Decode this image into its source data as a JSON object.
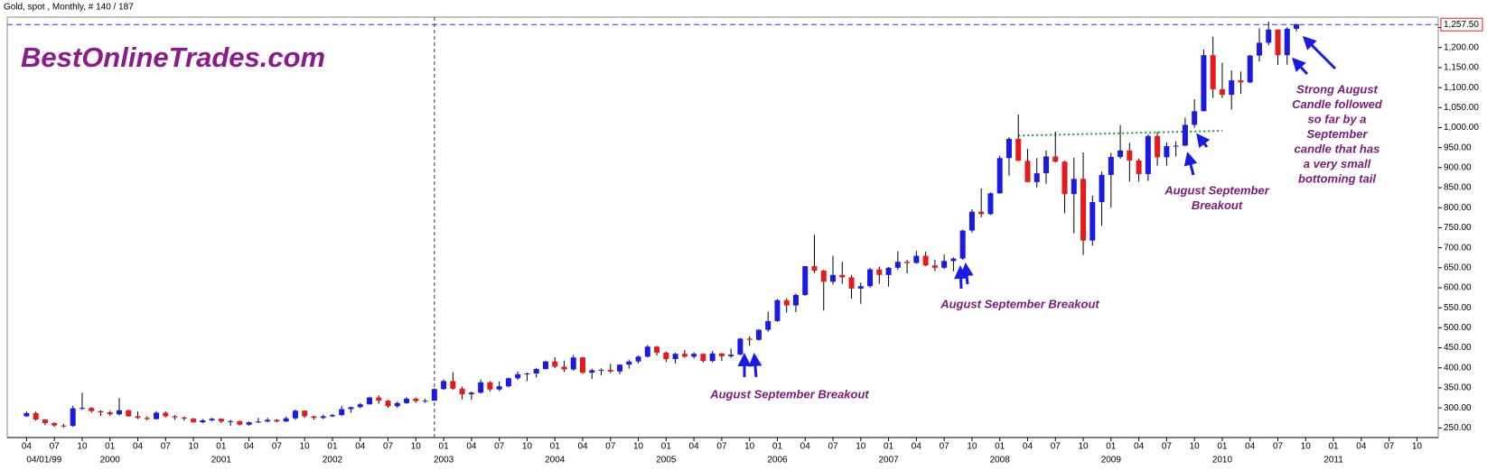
{
  "chart_data": {
    "type": "candlestick",
    "title": "Gold, spot , Monthly, # 140 / 187",
    "watermark": "BestOnlineTrades.com",
    "up_color": "#1a1ae6",
    "down_color": "#e61a1a",
    "x": [
      "1999-04",
      "1999-05",
      "1999-06",
      "1999-07",
      "1999-08",
      "1999-09",
      "1999-10",
      "1999-11",
      "1999-12",
      "2000-01",
      "2000-02",
      "2000-03",
      "2000-04",
      "2000-05",
      "2000-06",
      "2000-07",
      "2000-08",
      "2000-09",
      "2000-10",
      "2000-11",
      "2000-12",
      "2001-01",
      "2001-02",
      "2001-03",
      "2001-04",
      "2001-05",
      "2001-06",
      "2001-07",
      "2001-08",
      "2001-09",
      "2001-10",
      "2001-11",
      "2001-12",
      "2002-01",
      "2002-02",
      "2002-03",
      "2002-04",
      "2002-05",
      "2002-06",
      "2002-07",
      "2002-08",
      "2002-09",
      "2002-10",
      "2002-11",
      "2002-12",
      "2003-01",
      "2003-02",
      "2003-03",
      "2003-04",
      "2003-05",
      "2003-06",
      "2003-07",
      "2003-08",
      "2003-09",
      "2003-10",
      "2003-11",
      "2003-12",
      "2004-01",
      "2004-02",
      "2004-03",
      "2004-04",
      "2004-05",
      "2004-06",
      "2004-07",
      "2004-08",
      "2004-09",
      "2004-10",
      "2004-11",
      "2004-12",
      "2005-01",
      "2005-02",
      "2005-03",
      "2005-04",
      "2005-05",
      "2005-06",
      "2005-07",
      "2005-08",
      "2005-09",
      "2005-10",
      "2005-11",
      "2005-12",
      "2006-01",
      "2006-02",
      "2006-03",
      "2006-04",
      "2006-05",
      "2006-06",
      "2006-07",
      "2006-08",
      "2006-09",
      "2006-10",
      "2006-11",
      "2006-12",
      "2007-01",
      "2007-02",
      "2007-03",
      "2007-04",
      "2007-05",
      "2007-06",
      "2007-07",
      "2007-08",
      "2007-09",
      "2007-10",
      "2007-11",
      "2007-12",
      "2008-01",
      "2008-02",
      "2008-03",
      "2008-04",
      "2008-05",
      "2008-06",
      "2008-07",
      "2008-08",
      "2008-09",
      "2008-10",
      "2008-11",
      "2008-12",
      "2009-01",
      "2009-02",
      "2009-03",
      "2009-04",
      "2009-05",
      "2009-06",
      "2009-07",
      "2009-08",
      "2009-09",
      "2009-10",
      "2009-11",
      "2009-12",
      "2010-01",
      "2010-02",
      "2010-03",
      "2010-04",
      "2010-05",
      "2010-06",
      "2010-07",
      "2010-08",
      "2010-09"
    ],
    "open": [
      279,
      287,
      271,
      262,
      256,
      255,
      299,
      300,
      292,
      289,
      284,
      294,
      279,
      275,
      272,
      288,
      279,
      276,
      273,
      264,
      269,
      273,
      266,
      267,
      258,
      264,
      266,
      270,
      266,
      274,
      293,
      279,
      275,
      279,
      282,
      297,
      302,
      309,
      326,
      318,
      304,
      312,
      323,
      317,
      318,
      347,
      367,
      348,
      334,
      338,
      364,
      346,
      354,
      374,
      384,
      386,
      397,
      416,
      403,
      396,
      426,
      388,
      394,
      395,
      391,
      408,
      416,
      428,
      453,
      438,
      422,
      435,
      428,
      435,
      417,
      436,
      429,
      433,
      473,
      470,
      495,
      517,
      569,
      556,
      582,
      654,
      643,
      615,
      632,
      626,
      598,
      604,
      646,
      632,
      650,
      665,
      662,
      680,
      656,
      650,
      667,
      673,
      743,
      790,
      784,
      836,
      924,
      972,
      917,
      864,
      886,
      928,
      915,
      834,
      872,
      718,
      814,
      882,
      927,
      943,
      918,
      884,
      979,
      926,
      954,
      955,
      1007,
      1041,
      1181,
      1096,
      1082,
      1118,
      1113,
      1180,
      1212,
      1245,
      1181,
      1247
    ],
    "high": [
      291,
      291,
      272,
      264,
      260,
      305,
      338,
      302,
      294,
      293,
      325,
      296,
      291,
      279,
      292,
      291,
      282,
      278,
      275,
      272,
      275,
      274,
      270,
      268,
      266,
      275,
      275,
      272,
      279,
      296,
      294,
      280,
      283,
      285,
      305,
      303,
      312,
      328,
      331,
      320,
      316,
      327,
      326,
      323,
      349,
      371,
      389,
      353,
      341,
      371,
      367,
      366,
      376,
      391,
      388,
      400,
      418,
      427,
      418,
      432,
      428,
      398,
      399,
      410,
      409,
      420,
      431,
      457,
      455,
      441,
      438,
      445,
      439,
      436,
      442,
      437,
      448,
      475,
      479,
      497,
      540,
      572,
      574,
      586,
      654,
      732,
      645,
      680,
      665,
      632,
      613,
      650,
      653,
      652,
      691,
      670,
      692,
      690,
      670,
      683,
      676,
      745,
      796,
      848,
      838,
      930,
      976,
      1033,
      947,
      924,
      943,
      990,
      917,
      925,
      938,
      830,
      890,
      937,
      1006,
      962,
      923,
      983,
      990,
      963,
      966,
      1025,
      1071,
      1195,
      1227,
      1162,
      1143,
      1140,
      1182,
      1248,
      1265,
      1245,
      1251,
      1260
    ],
    "low": [
      278,
      268,
      257,
      253,
      251,
      253,
      295,
      288,
      280,
      280,
      281,
      278,
      272,
      269,
      271,
      276,
      270,
      268,
      263,
      262,
      267,
      262,
      255,
      256,
      255,
      262,
      264,
      264,
      265,
      270,
      275,
      270,
      272,
      277,
      280,
      288,
      299,
      308,
      310,
      300,
      300,
      310,
      313,
      313,
      318,
      345,
      345,
      321,
      320,
      336,
      341,
      342,
      351,
      370,
      367,
      376,
      396,
      399,
      390,
      393,
      385,
      372,
      381,
      387,
      384,
      398,
      411,
      426,
      431,
      415,
      411,
      425,
      423,
      414,
      414,
      417,
      425,
      432,
      455,
      468,
      490,
      515,
      538,
      539,
      580,
      637,
      543,
      608,
      610,
      573,
      560,
      600,
      610,
      603,
      645,
      636,
      660,
      654,
      642,
      647,
      641,
      670,
      738,
      776,
      782,
      835,
      880,
      917,
      865,
      850,
      860,
      913,
      786,
      736,
      682,
      705,
      755,
      800,
      922,
      865,
      865,
      867,
      905,
      905,
      928,
      954,
      1000,
      1041,
      1074,
      1074,
      1045,
      1084,
      1111,
      1165,
      1206,
      1157,
      1157,
      1240
    ],
    "close": [
      287,
      271,
      262,
      256,
      255,
      299,
      300,
      292,
      289,
      284,
      294,
      279,
      275,
      272,
      288,
      279,
      276,
      273,
      264,
      269,
      273,
      266,
      267,
      258,
      264,
      266,
      270,
      266,
      274,
      293,
      279,
      275,
      279,
      282,
      297,
      302,
      309,
      326,
      318,
      304,
      312,
      323,
      317,
      318,
      347,
      367,
      348,
      334,
      338,
      364,
      346,
      354,
      374,
      384,
      386,
      397,
      416,
      403,
      396,
      426,
      388,
      394,
      395,
      391,
      408,
      416,
      428,
      453,
      438,
      422,
      435,
      428,
      435,
      417,
      436,
      429,
      433,
      473,
      470,
      495,
      517,
      569,
      556,
      582,
      654,
      643,
      615,
      632,
      626,
      598,
      604,
      646,
      632,
      650,
      665,
      662,
      680,
      656,
      650,
      667,
      673,
      743,
      790,
      784,
      836,
      924,
      972,
      917,
      864,
      886,
      928,
      915,
      834,
      872,
      718,
      814,
      882,
      927,
      943,
      918,
      884,
      979,
      926,
      954,
      955,
      1007,
      1041,
      1181,
      1096,
      1082,
      1118,
      1113,
      1180,
      1212,
      1245,
      1181,
      1247,
      1257.5
    ],
    "ylim": [
      226,
      1276
    ],
    "yticks": [
      {
        "value": 250,
        "label": "250.00"
      },
      {
        "value": 300,
        "label": "300.00"
      },
      {
        "value": 350,
        "label": "350.00"
      },
      {
        "value": 400,
        "label": "400.00"
      },
      {
        "value": 450,
        "label": "450.00"
      },
      {
        "value": 500,
        "label": "500.00"
      },
      {
        "value": 550,
        "label": "550.00"
      },
      {
        "value": 600,
        "label": "600.00"
      },
      {
        "value": 650,
        "label": "650.00"
      },
      {
        "value": 700,
        "label": "700.00"
      },
      {
        "value": 750,
        "label": "750.00"
      },
      {
        "value": 800,
        "label": "800.00"
      },
      {
        "value": 850,
        "label": "850.00"
      },
      {
        "value": 900,
        "label": "900.00"
      },
      {
        "value": 950,
        "label": "950.00"
      },
      {
        "value": 1000,
        "label": "1,000.00"
      },
      {
        "value": 1050,
        "label": "1,050.00"
      },
      {
        "value": 1100,
        "label": "1,100.00"
      },
      {
        "value": 1150,
        "label": "1,150.00"
      },
      {
        "value": 1200,
        "label": "1,200.00"
      },
      {
        "value": 1250,
        "label": "1,250.00"
      }
    ],
    "last_price": {
      "value": 1257.5,
      "label": "1,257.50"
    },
    "xticks": [
      {
        "value": "1999-04",
        "label": "04"
      },
      {
        "value": "1999-07",
        "label": "07"
      },
      {
        "value": "1999-10",
        "label": "10"
      },
      {
        "value": "2000-01",
        "label": "01"
      },
      {
        "value": "2000-04",
        "label": "04"
      },
      {
        "value": "2000-07",
        "label": "07"
      },
      {
        "value": "2000-10",
        "label": "10"
      },
      {
        "value": "2001-01",
        "label": "01"
      },
      {
        "value": "2001-04",
        "label": "04"
      },
      {
        "value": "2001-07",
        "label": "07"
      },
      {
        "value": "2001-10",
        "label": "10"
      },
      {
        "value": "2002-01",
        "label": "01"
      },
      {
        "value": "2002-04",
        "label": "04"
      },
      {
        "value": "2002-07",
        "label": "07"
      },
      {
        "value": "2002-10",
        "label": "10"
      },
      {
        "value": "2003-01",
        "label": "01"
      },
      {
        "value": "2003-04",
        "label": "04"
      },
      {
        "value": "2003-07",
        "label": "07"
      },
      {
        "value": "2003-10",
        "label": "10"
      },
      {
        "value": "2004-01",
        "label": "01"
      },
      {
        "value": "2004-04",
        "label": "04"
      },
      {
        "value": "2004-07",
        "label": "07"
      },
      {
        "value": "2004-10",
        "label": "10"
      },
      {
        "value": "2005-01",
        "label": "01"
      },
      {
        "value": "2005-04",
        "label": "04"
      },
      {
        "value": "2005-07",
        "label": "07"
      },
      {
        "value": "2005-10",
        "label": "10"
      },
      {
        "value": "2006-01",
        "label": "01"
      },
      {
        "value": "2006-04",
        "label": "04"
      },
      {
        "value": "2006-07",
        "label": "07"
      },
      {
        "value": "2006-10",
        "label": "10"
      },
      {
        "value": "2007-01",
        "label": "01"
      },
      {
        "value": "2007-04",
        "label": "04"
      },
      {
        "value": "2007-07",
        "label": "07"
      },
      {
        "value": "2007-10",
        "label": "10"
      },
      {
        "value": "2008-01",
        "label": "01"
      },
      {
        "value": "2008-04",
        "label": "04"
      },
      {
        "value": "2008-07",
        "label": "07"
      },
      {
        "value": "2008-10",
        "label": "10"
      },
      {
        "value": "2009-01",
        "label": "01"
      },
      {
        "value": "2009-04",
        "label": "04"
      },
      {
        "value": "2009-07",
        "label": "07"
      },
      {
        "value": "2009-10",
        "label": "10"
      },
      {
        "value": "2010-01",
        "label": "01"
      },
      {
        "value": "2010-04",
        "label": "04"
      },
      {
        "value": "2010-07",
        "label": "07"
      },
      {
        "value": "2010-10",
        "label": "10"
      },
      {
        "value": "2011-01",
        "label": "01"
      },
      {
        "value": "2011-04",
        "label": "04"
      },
      {
        "value": "2011-07",
        "label": "07"
      },
      {
        "value": "2011-10",
        "label": "10"
      }
    ],
    "year_labels": [
      {
        "value": "1999-04",
        "label": "04/01/99"
      },
      {
        "value": "2000-01",
        "label": "2000"
      },
      {
        "value": "2001-01",
        "label": "2001"
      },
      {
        "value": "2002-01",
        "label": "2002"
      },
      {
        "value": "2003-01",
        "label": "2003"
      },
      {
        "value": "2004-01",
        "label": "2004"
      },
      {
        "value": "2005-01",
        "label": "2005"
      },
      {
        "value": "2006-01",
        "label": "2006"
      },
      {
        "value": "2007-01",
        "label": "2007"
      },
      {
        "value": "2008-01",
        "label": "2008"
      },
      {
        "value": "2009-01",
        "label": "2009"
      },
      {
        "value": "2010-01",
        "label": "2010"
      },
      {
        "value": "2011-01",
        "label": "2011"
      }
    ],
    "cursor": "2002-12",
    "trendline": {
      "x": [
        "2008-03",
        "2010-01"
      ],
      "y": [
        980,
        992
      ]
    },
    "annotations": [
      [
        "August September Breakout"
      ],
      [
        "August September Breakout"
      ],
      [
        "August September",
        "Breakout"
      ],
      [
        "Strong August",
        "Candle followed",
        "so far by a",
        "September",
        "candle that has",
        "a very small",
        "bottoming tail"
      ]
    ]
  }
}
